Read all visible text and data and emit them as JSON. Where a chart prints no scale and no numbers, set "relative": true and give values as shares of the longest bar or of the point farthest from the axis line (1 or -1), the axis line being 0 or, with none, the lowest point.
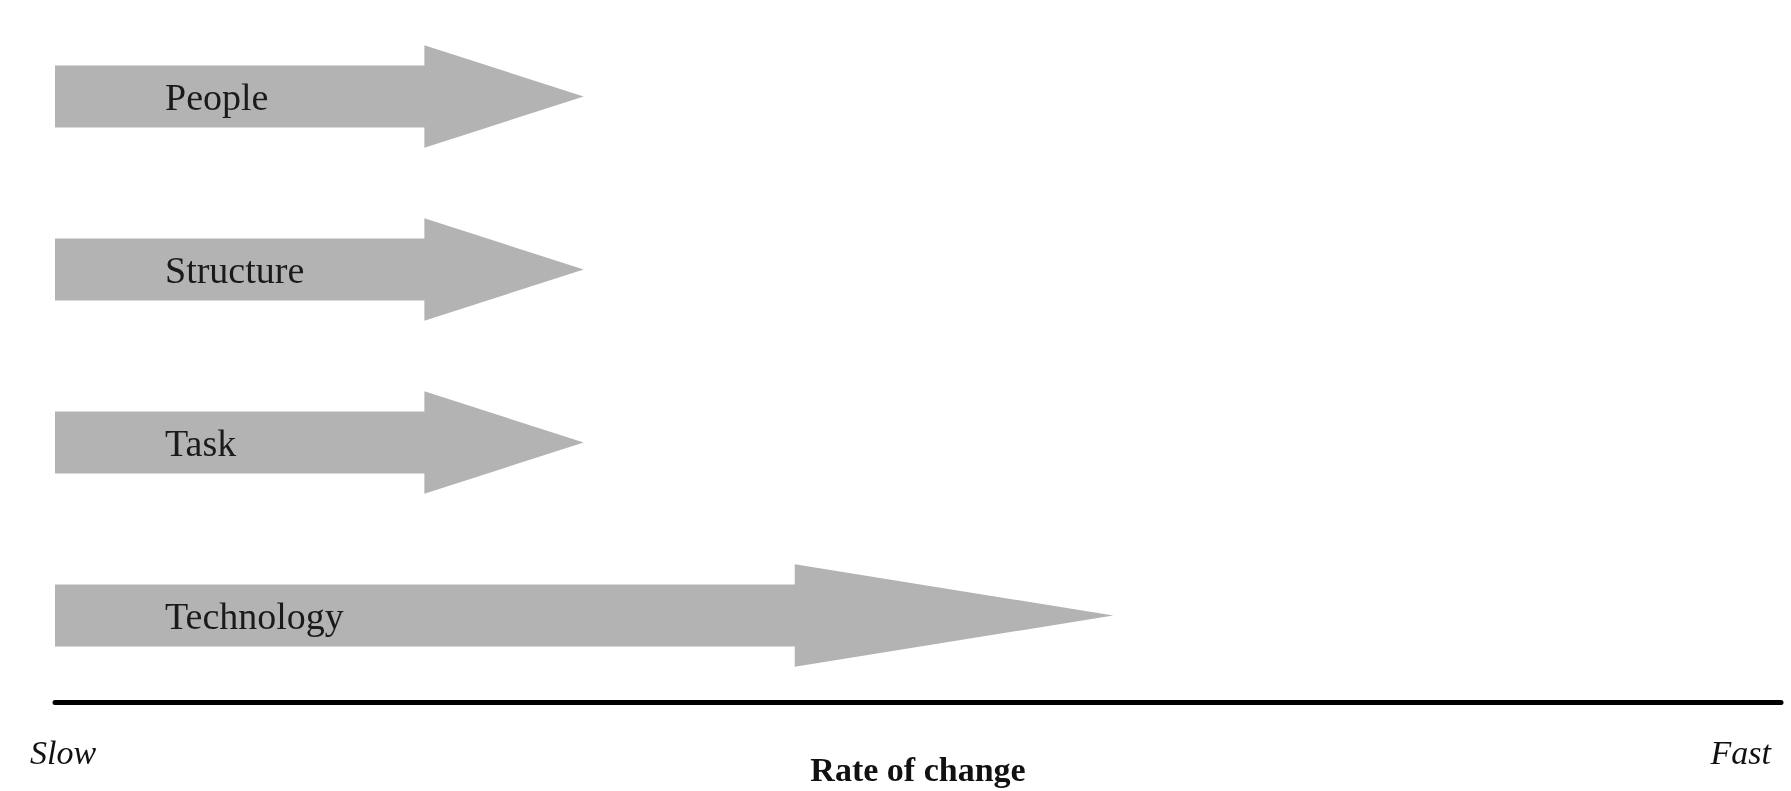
{
  "chart_data": {
    "type": "bar",
    "orientation": "horizontal",
    "relative": true,
    "categories": [
      "People",
      "Structure",
      "Task",
      "Technology"
    ],
    "values": [
      0.5,
      0.5,
      0.5,
      1
    ],
    "color": "#b3b3b3",
    "xlabel": "Rate of change",
    "annotations": [
      "Slow",
      "Fast"
    ]
  }
}
